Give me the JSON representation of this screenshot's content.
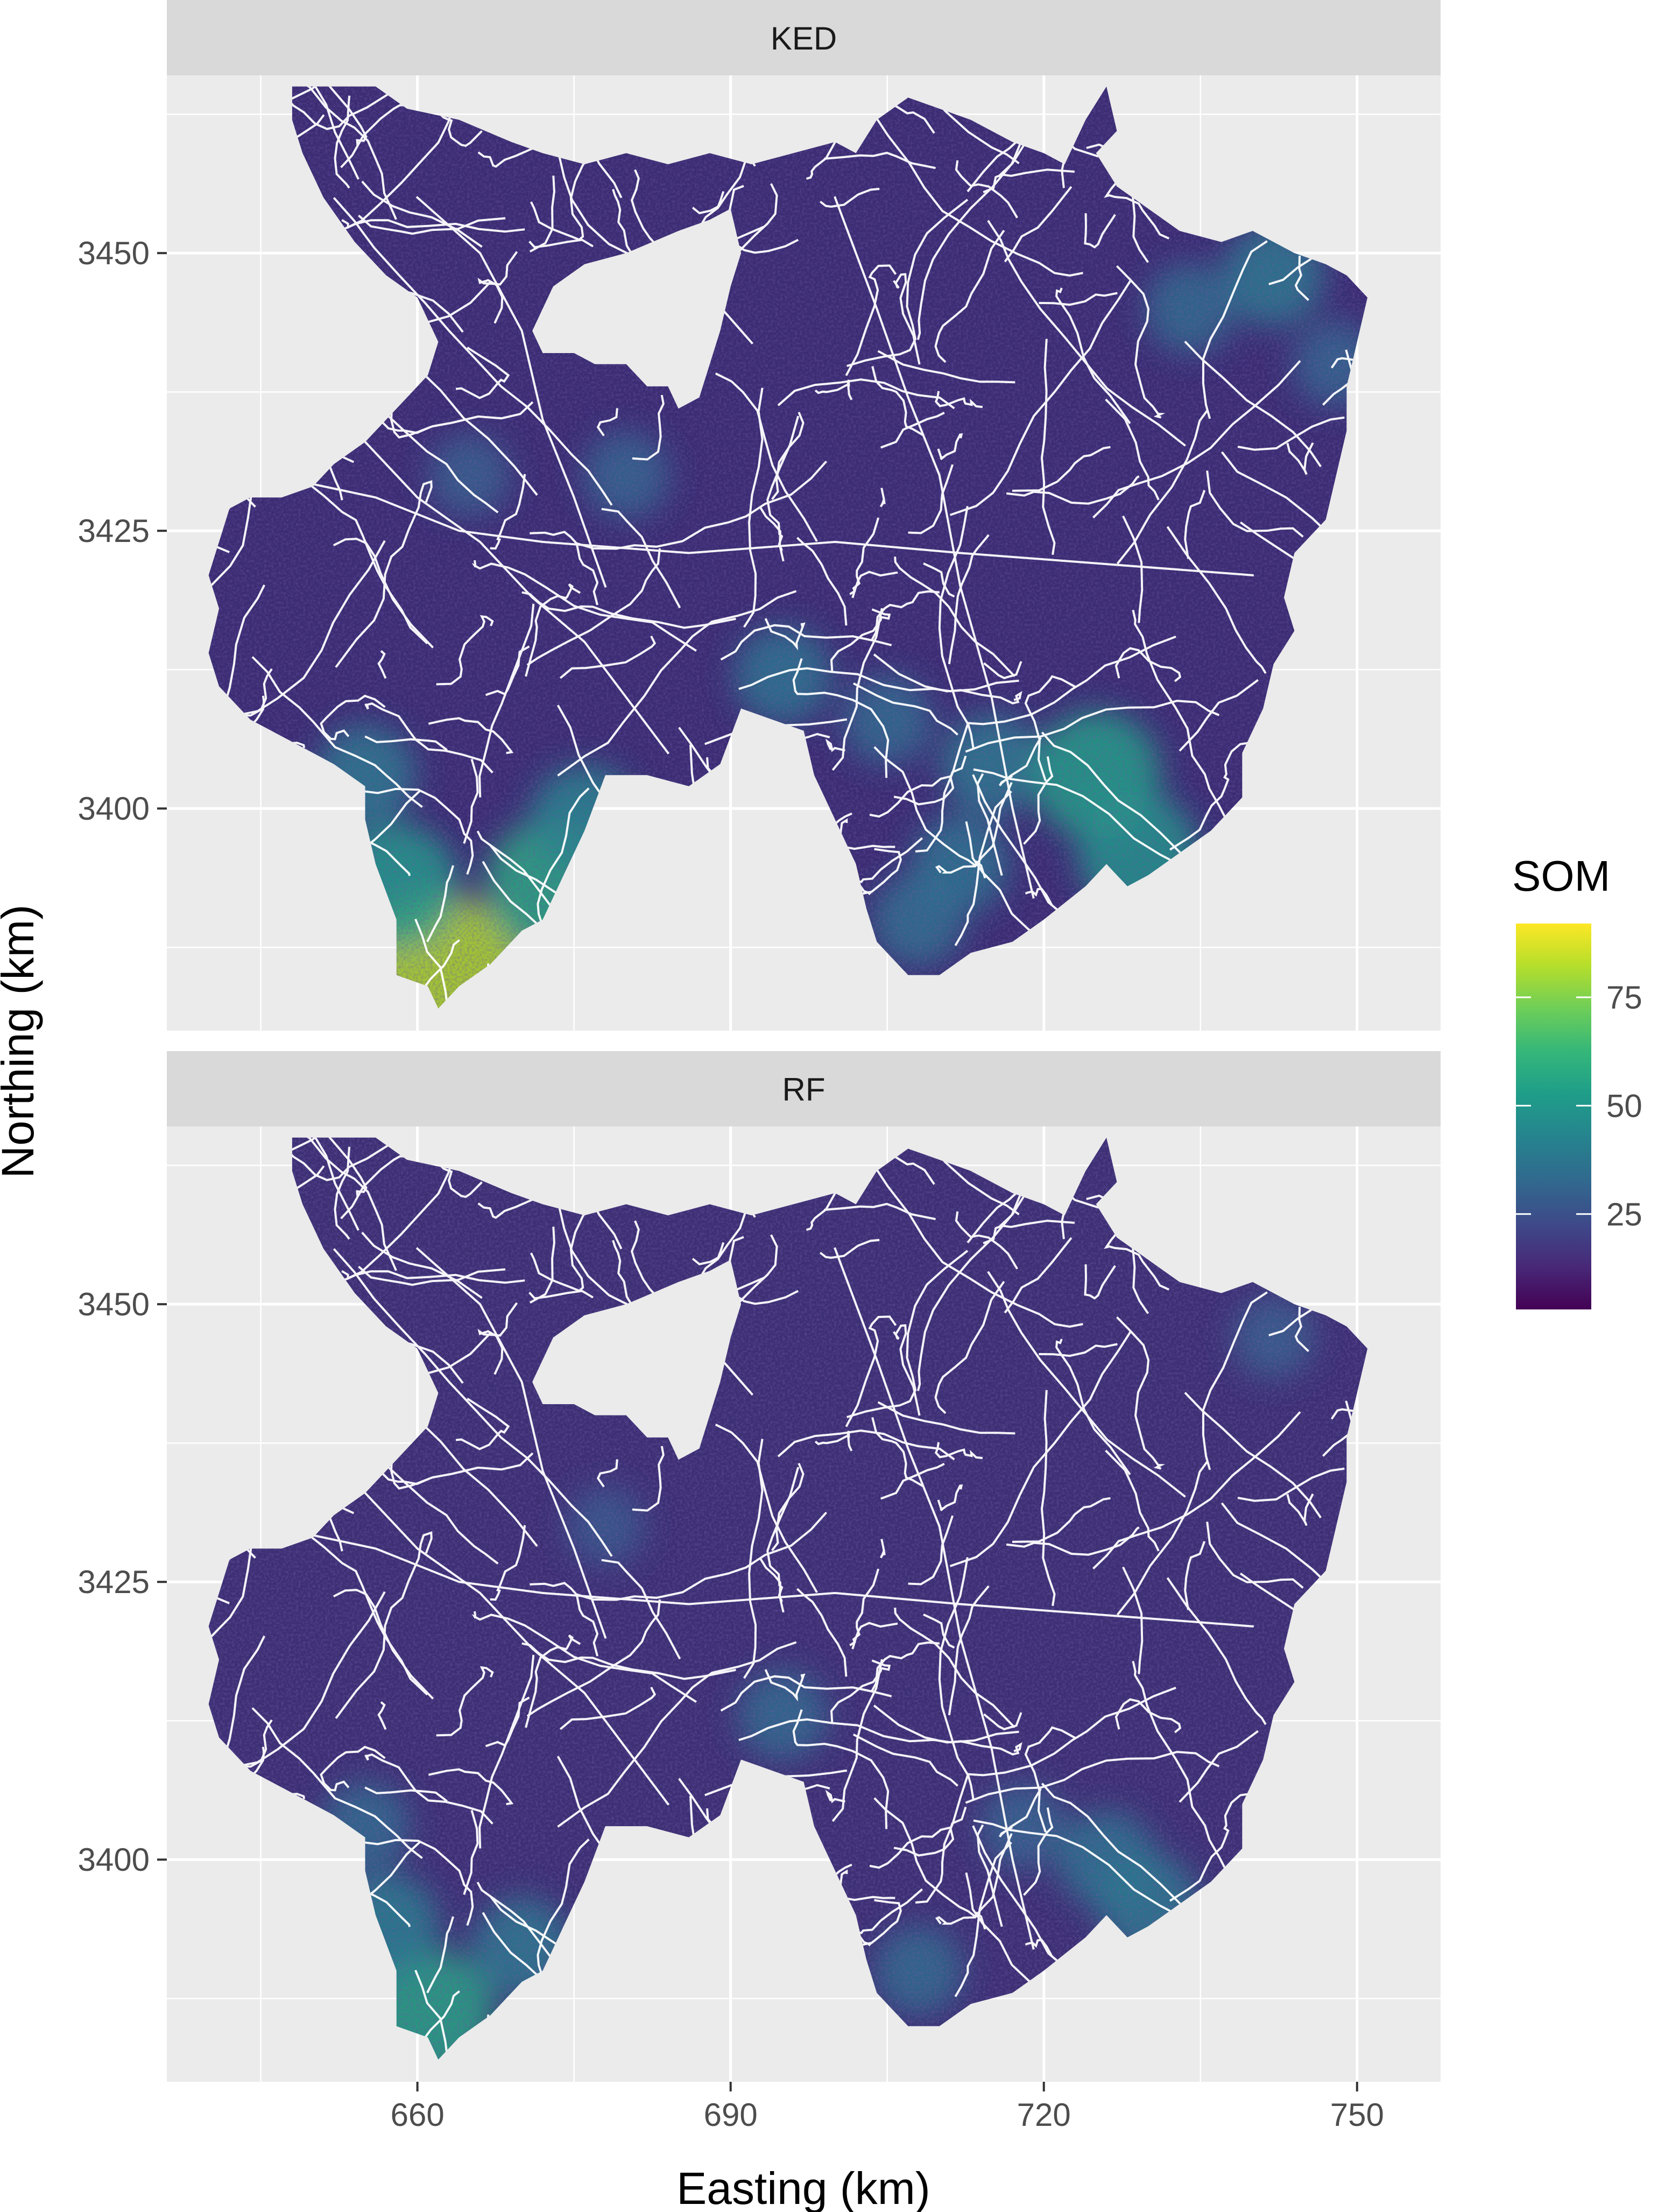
{
  "chart_data": {
    "type": "heatmap",
    "panels": [
      {
        "name": "KED",
        "hotspots": [
          {
            "x": 662,
            "y": 3384,
            "v": 82
          },
          {
            "x": 658,
            "y": 3393,
            "v": 52
          },
          {
            "x": 673,
            "y": 3393,
            "v": 58
          },
          {
            "x": 655,
            "y": 3403,
            "v": 40
          },
          {
            "x": 676,
            "y": 3399,
            "v": 44
          },
          {
            "x": 695,
            "y": 3412,
            "v": 38
          },
          {
            "x": 705,
            "y": 3408,
            "v": 34
          },
          {
            "x": 715,
            "y": 3404,
            "v": 40
          },
          {
            "x": 725,
            "y": 3403,
            "v": 54
          },
          {
            "x": 729,
            "y": 3396,
            "v": 50
          },
          {
            "x": 712,
            "y": 3395,
            "v": 38
          },
          {
            "x": 708,
            "y": 3390,
            "v": 36
          },
          {
            "x": 742,
            "y": 3448,
            "v": 40
          },
          {
            "x": 734,
            "y": 3445,
            "v": 34
          },
          {
            "x": 748,
            "y": 3440,
            "v": 32
          },
          {
            "x": 680,
            "y": 3430,
            "v": 32
          },
          {
            "x": 665,
            "y": 3430,
            "v": 30
          }
        ]
      },
      {
        "name": "RF",
        "hotspots": [
          {
            "x": 661,
            "y": 3386,
            "v": 56
          },
          {
            "x": 657,
            "y": 3394,
            "v": 42
          },
          {
            "x": 670,
            "y": 3392,
            "v": 40
          },
          {
            "x": 655,
            "y": 3403,
            "v": 34
          },
          {
            "x": 695,
            "y": 3413,
            "v": 34
          },
          {
            "x": 718,
            "y": 3403,
            "v": 32
          },
          {
            "x": 726,
            "y": 3400,
            "v": 38
          },
          {
            "x": 730,
            "y": 3396,
            "v": 40
          },
          {
            "x": 708,
            "y": 3390,
            "v": 34
          },
          {
            "x": 742,
            "y": 3447,
            "v": 30
          },
          {
            "x": 678,
            "y": 3430,
            "v": 28
          }
        ]
      }
    ],
    "base_value": 18,
    "xlabel": "Easting (km)",
    "ylabel": "Northing (km)",
    "xlim": [
      636,
      758
    ],
    "ylim": [
      3380,
      3466
    ],
    "x_ticks": [
      660,
      690,
      720,
      750
    ],
    "y_ticks": [
      3400,
      3425,
      3450
    ],
    "x_minor": [
      645,
      675,
      705,
      735
    ],
    "y_minor": [
      3387.5,
      3412.5,
      3437.5,
      3462.5
    ],
    "legend": {
      "title": "SOM",
      "min": 3,
      "max": 92,
      "ticks": [
        25,
        50,
        75
      ],
      "position": "right"
    },
    "colors": [
      "#440154",
      "#482878",
      "#3e4989",
      "#31688e",
      "#26828e",
      "#1f9e89",
      "#35b779",
      "#6ece58",
      "#b5de2b",
      "#fde725"
    ],
    "grid": true,
    "panel_background": "#ebebeb",
    "strip_background": "#d9d9d9"
  }
}
